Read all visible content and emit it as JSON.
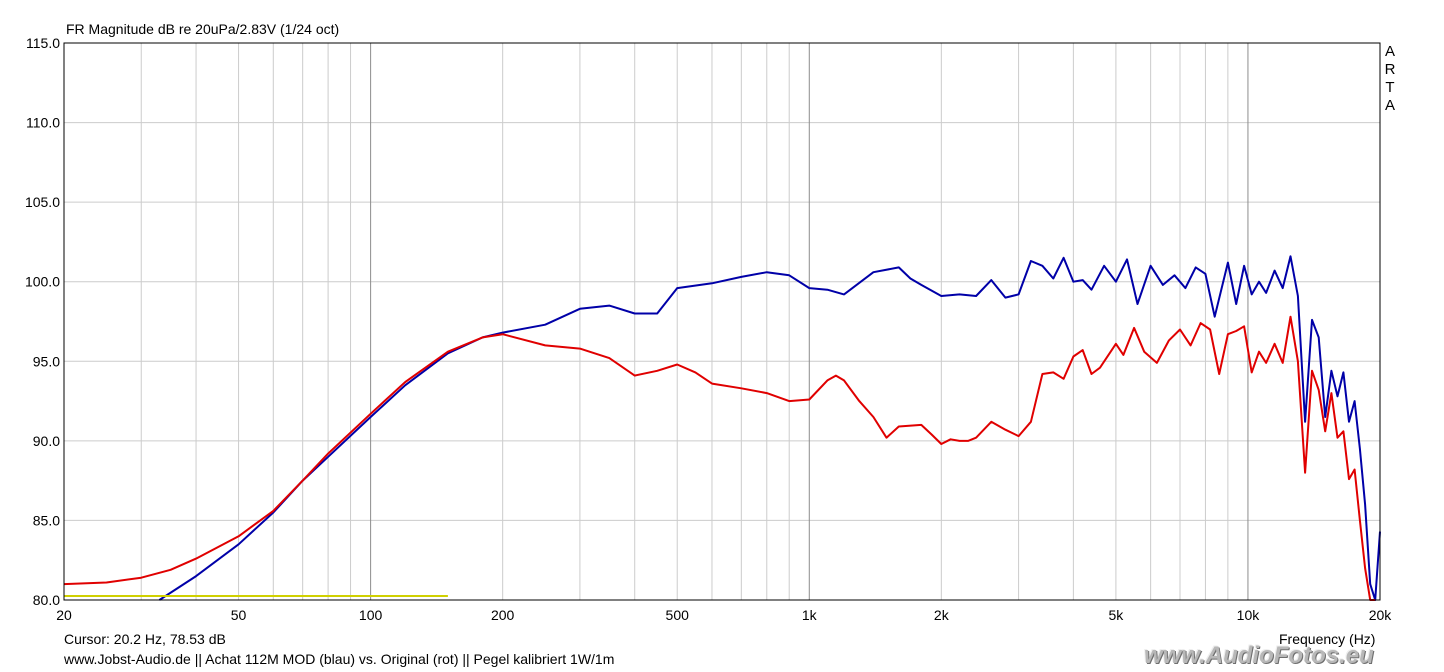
{
  "chart_data": {
    "type": "line",
    "title": "FR Magnitude dB re 20uPa/2.83V (1/24 oct)",
    "xlabel": "Frequency (Hz)",
    "ylabel": "",
    "xscale": "log",
    "xlim": [
      20,
      20000
    ],
    "ylim": [
      80,
      115
    ],
    "grid": true,
    "y_ticks": [
      "80.0",
      "85.0",
      "90.0",
      "95.0",
      "100.0",
      "105.0",
      "110.0",
      "115.0"
    ],
    "y_tick_values": [
      80,
      85,
      90,
      95,
      100,
      105,
      110,
      115
    ],
    "x_ticks": [
      "20",
      "50",
      "100",
      "200",
      "500",
      "1k",
      "2k",
      "5k",
      "10k",
      "20k"
    ],
    "x_tick_values": [
      20,
      50,
      100,
      200,
      500,
      1000,
      2000,
      5000,
      10000,
      20000
    ],
    "series": [
      {
        "color": "#0000a8",
        "x": [
          33,
          40,
          50,
          60,
          70,
          80,
          100,
          120,
          150,
          180,
          200,
          250,
          300,
          350,
          400,
          450,
          500,
          600,
          700,
          800,
          900,
          1000,
          1100,
          1200,
          1400,
          1600,
          1700,
          1800,
          2000,
          2200,
          2400,
          2600,
          2800,
          3000,
          3200,
          3400,
          3600,
          3800,
          4000,
          4200,
          4400,
          4700,
          5000,
          5300,
          5600,
          6000,
          6400,
          6800,
          7200,
          7600,
          8000,
          8400,
          9000,
          9400,
          9800,
          10200,
          10600,
          11000,
          11500,
          12000,
          12500,
          13000,
          13500,
          14000,
          14500,
          15000,
          15500,
          16000,
          16500,
          17000,
          17500,
          18000,
          18500,
          19000,
          19500,
          20000
        ],
        "y": [
          80,
          81.5,
          83.5,
          85.5,
          87.5,
          89,
          91.5,
          93.5,
          95.5,
          96.5,
          96.8,
          97.3,
          98.3,
          98.5,
          98.0,
          98.0,
          99.6,
          99.9,
          100.3,
          100.6,
          100.4,
          99.6,
          99.5,
          99.2,
          100.6,
          100.9,
          100.2,
          99.8,
          99.1,
          99.2,
          99.1,
          100.1,
          99.0,
          99.2,
          101.3,
          101.0,
          100.2,
          101.5,
          100.0,
          100.1,
          99.5,
          101.0,
          100.0,
          101.4,
          98.6,
          101.0,
          99.8,
          100.4,
          99.6,
          100.9,
          100.5,
          97.8,
          101.2,
          98.6,
          101.0,
          99.2,
          100.0,
          99.3,
          100.7,
          99.6,
          101.6,
          99.1,
          91.2,
          97.6,
          96.5,
          91.5,
          94.4,
          92.8,
          94.3,
          91.2,
          92.5,
          89.5,
          86.0,
          81.0,
          80.0,
          84.3
        ]
      },
      {
        "color": "#e00000",
        "x": [
          20,
          25,
          30,
          35,
          40,
          50,
          60,
          70,
          80,
          100,
          120,
          150,
          180,
          200,
          250,
          300,
          350,
          400,
          450,
          500,
          550,
          600,
          700,
          800,
          900,
          1000,
          1100,
          1150,
          1200,
          1300,
          1400,
          1500,
          1600,
          1800,
          1900,
          2000,
          2100,
          2200,
          2300,
          2400,
          2600,
          2800,
          3000,
          3200,
          3400,
          3600,
          3800,
          4000,
          4200,
          4400,
          4600,
          5000,
          5200,
          5500,
          5800,
          6200,
          6600,
          7000,
          7400,
          7800,
          8200,
          8600,
          9000,
          9400,
          9800,
          10200,
          10600,
          11000,
          11500,
          12000,
          12500,
          13000,
          13500,
          14000,
          14500,
          15000,
          15500,
          16000,
          16500,
          17000,
          17500,
          18000,
          18500,
          19000,
          19500
        ],
        "y": [
          81,
          81.1,
          81.4,
          81.9,
          82.6,
          84.0,
          85.6,
          87.5,
          89.2,
          91.7,
          93.7,
          95.6,
          96.5,
          96.7,
          96.0,
          95.8,
          95.2,
          94.1,
          94.4,
          94.8,
          94.3,
          93.6,
          93.3,
          93.0,
          92.5,
          92.6,
          93.8,
          94.1,
          93.8,
          92.5,
          91.5,
          90.2,
          90.9,
          91.0,
          90.4,
          89.8,
          90.1,
          90.0,
          90.0,
          90.2,
          91.2,
          90.7,
          90.3,
          91.2,
          94.2,
          94.3,
          93.9,
          95.3,
          95.7,
          94.2,
          94.6,
          96.1,
          95.4,
          97.1,
          95.6,
          94.9,
          96.3,
          97.0,
          96.0,
          97.4,
          97.0,
          94.2,
          96.7,
          96.9,
          97.2,
          94.3,
          95.6,
          94.9,
          96.1,
          94.9,
          97.8,
          95.0,
          88.0,
          94.4,
          93.2,
          90.6,
          93.0,
          90.2,
          90.6,
          87.6,
          88.2,
          85.0,
          82.0,
          80.0,
          80.0
        ]
      },
      {
        "color": "#d0d000",
        "x": [
          20,
          150
        ],
        "y": [
          80.25,
          80.25
        ]
      }
    ]
  },
  "labels": {
    "title": "FR Magnitude dB re 20uPa/2.83V (1/24 oct)",
    "cursor": "Cursor: 20.2 Hz, 78.53 dB",
    "xlabel": "Frequency (Hz)",
    "footer": "www.Jobst-Audio.de  ||  Achat 112M MOD (blau) vs. Original (rot)  ||  Pegel kalibriert 1W/1m",
    "arta": [
      "A",
      "R",
      "T",
      "A"
    ],
    "watermark": "www.AudioFotos.eu"
  }
}
